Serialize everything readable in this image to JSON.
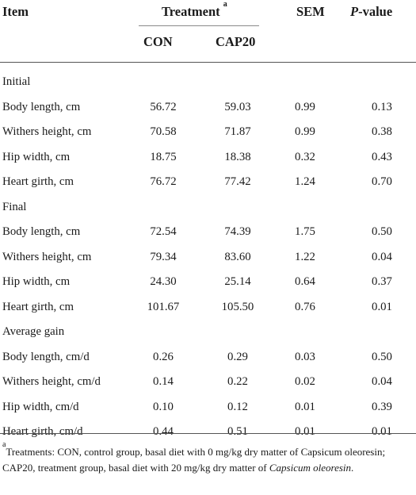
{
  "table": {
    "headers": {
      "item": "Item",
      "treatment": "Treatment",
      "treatment_sup": "a",
      "con": "CON",
      "cap20": "CAP20",
      "sem": "SEM",
      "p_value": "P-value"
    },
    "sections": [
      {
        "title": "Initial",
        "rows": [
          {
            "item": "Body length, cm",
            "con": "56.72",
            "cap20": "59.03",
            "sem": "0.99",
            "p": "0.13"
          },
          {
            "item": "Withers height, cm",
            "con": "70.58",
            "cap20": "71.87",
            "sem": "0.99",
            "p": "0.38"
          },
          {
            "item": "Hip width, cm",
            "con": "18.75",
            "cap20": "18.38",
            "sem": "0.32",
            "p": "0.43"
          },
          {
            "item": "Heart girth, cm",
            "con": "76.72",
            "cap20": "77.42",
            "sem": "1.24",
            "p": "0.70"
          }
        ]
      },
      {
        "title": "Final",
        "rows": [
          {
            "item": "Body length, cm",
            "con": "72.54",
            "cap20": "74.39",
            "sem": "1.75",
            "p": "0.50"
          },
          {
            "item": "Withers height, cm",
            "con": "79.34",
            "cap20": "83.60",
            "sem": "1.22",
            "p": "0.04"
          },
          {
            "item": "Hip width, cm",
            "con": "24.30",
            "cap20": "25.14",
            "sem": "0.64",
            "p": "0.37"
          },
          {
            "item": "Heart girth, cm",
            "con": "101.67",
            "cap20": "105.50",
            "sem": "0.76",
            "p": "0.01"
          }
        ]
      },
      {
        "title": "Average gain",
        "rows": [
          {
            "item": "Body length, cm/d",
            "con": "0.26",
            "cap20": "0.29",
            "sem": "0.03",
            "p": "0.50"
          },
          {
            "item": "Withers height, cm/d",
            "con": "0.14",
            "cap20": "0.22",
            "sem": "0.02",
            "p": "0.04"
          },
          {
            "item": "Hip width, cm/d",
            "con": "0.10",
            "cap20": "0.12",
            "sem": "0.01",
            "p": "0.39"
          },
          {
            "item": "Heart girth, cm/d",
            "con": "0.44",
            "cap20": "0.51",
            "sem": "0.01",
            "p": "0.01"
          }
        ]
      }
    ],
    "footnote": {
      "marker": "a",
      "text_1": "Treatments: CON, control group, basal diet with 0 mg/kg dry matter of Capsicum oleoresin; CAP20, treatment group, basal diet with 20 mg/kg dry matter of ",
      "text_italic": "Capsicum oleoresin",
      "text_2": "."
    }
  }
}
